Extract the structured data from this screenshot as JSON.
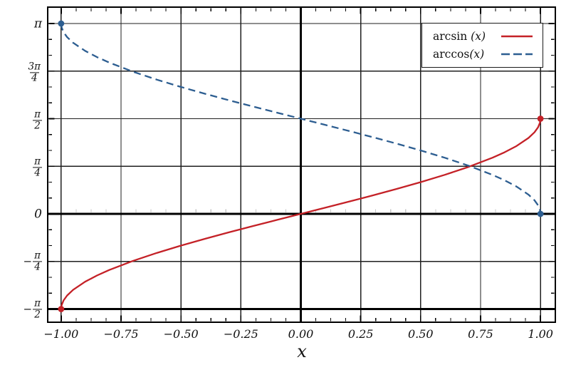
{
  "chart_data": {
    "type": "line",
    "title": "",
    "xlabel": "x",
    "ylabel": "",
    "xlim": [
      -1.056,
      1.062
    ],
    "ylim": [
      -1.788,
      3.412
    ],
    "grid": true,
    "legend_position": "upper right",
    "x_ticks": {
      "values": [
        -1,
        -0.75,
        -0.5,
        -0.25,
        0,
        0.25,
        0.5,
        0.75,
        1
      ],
      "labels": [
        "−1.00",
        "−0.75",
        "−0.50",
        "−0.25",
        "0.00",
        "0.25",
        "0.50",
        "0.75",
        "1.00"
      ]
    },
    "y_ticks": [
      {
        "value": 3.1416,
        "text": "π"
      },
      {
        "value": 2.3562,
        "neg": false,
        "num": "3π",
        "den": "4"
      },
      {
        "value": 1.5708,
        "neg": false,
        "num": "π",
        "den": "2"
      },
      {
        "value": 0.7854,
        "neg": false,
        "num": "π",
        "den": "4"
      },
      {
        "value": 0,
        "text": "0"
      },
      {
        "value": -0.7854,
        "neg": true,
        "num": "π",
        "den": "4"
      },
      {
        "value": -1.5708,
        "neg": true,
        "num": "π",
        "den": "2"
      }
    ],
    "emphasized_lines": {
      "x": [
        0
      ],
      "y": [
        0,
        -1.5708
      ]
    },
    "series": [
      {
        "name": "arcsin (x)",
        "label_func": "arcsin ",
        "label_arg": "(x)",
        "color": "#c42127",
        "line_style": "solid",
        "x": [
          -1,
          -0.998,
          -0.99,
          -0.975,
          -0.95,
          -0.9,
          -0.85,
          -0.8,
          -0.7,
          -0.6,
          -0.5,
          -0.4,
          -0.3,
          -0.2,
          -0.1,
          0,
          0.1,
          0.2,
          0.3,
          0.4,
          0.5,
          0.6,
          0.7,
          0.8,
          0.85,
          0.9,
          0.95,
          0.975,
          0.99,
          0.998,
          1
        ],
        "y": [
          -1.5708,
          -1.5075,
          -1.4293,
          -1.3467,
          -1.2532,
          -1.1198,
          -1.016,
          -0.9273,
          -0.7754,
          -0.6435,
          -0.5236,
          -0.4115,
          -0.3047,
          -0.2014,
          -0.1002,
          0,
          0.1002,
          0.2014,
          0.3047,
          0.4115,
          0.5236,
          0.6435,
          0.7754,
          0.9273,
          1.016,
          1.1198,
          1.2532,
          1.3467,
          1.4293,
          1.5075,
          1.5708
        ],
        "markers": [
          [
            -1,
            -1.5708
          ],
          [
            1,
            1.5708
          ]
        ]
      },
      {
        "name": "arccos(x)",
        "label_func": "arccos",
        "label_arg": "(x)",
        "color": "#2d5e91",
        "line_style": "dashed",
        "x": [
          -1,
          -0.998,
          -0.99,
          -0.975,
          -0.95,
          -0.9,
          -0.85,
          -0.8,
          -0.7,
          -0.6,
          -0.5,
          -0.4,
          -0.3,
          -0.2,
          -0.1,
          0,
          0.1,
          0.2,
          0.3,
          0.4,
          0.5,
          0.6,
          0.7,
          0.8,
          0.85,
          0.9,
          0.95,
          0.975,
          0.99,
          0.998,
          1
        ],
        "y": [
          3.1416,
          3.0783,
          3.0001,
          2.9175,
          2.824,
          2.6906,
          2.5868,
          2.4981,
          2.3462,
          2.2143,
          2.0944,
          1.9823,
          1.8755,
          1.7722,
          1.671,
          1.5708,
          1.4706,
          1.3694,
          1.2661,
          1.1593,
          1.0472,
          0.9273,
          0.7954,
          0.6435,
          0.5548,
          0.451,
          0.3176,
          0.2241,
          0.1415,
          0.0633,
          0
        ],
        "markers": [
          [
            -1,
            3.1416
          ],
          [
            1,
            0
          ]
        ]
      }
    ],
    "style": {
      "grid_color": "#1f1f1f",
      "zero_line_color": "#000000",
      "frame_color": "#000000",
      "faint_tick_color": "#c6c6c6",
      "text_color": "#111111"
    }
  }
}
